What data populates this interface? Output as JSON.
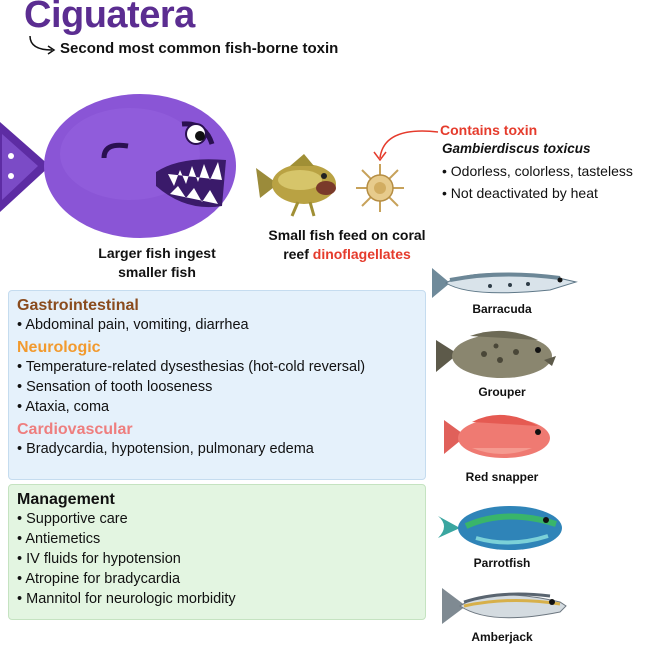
{
  "header": {
    "title": "Ciguatera",
    "subtitle": "Second most common fish-borne toxin"
  },
  "illustration": {
    "large_fish_caption_line1": "Larger fish ingest",
    "large_fish_caption_line2": "smaller fish",
    "small_fish_caption_line1": "Small fish feed on coral",
    "small_fish_caption_line2_plain": "reef ",
    "small_fish_caption_line2_highlight": "dinoflagellates"
  },
  "toxin": {
    "label": "Contains toxin",
    "species": "Gambierdiscus toxicus",
    "facts": [
      "Odorless, colorless, tasteless",
      "Not deactivated by heat"
    ]
  },
  "clinical": {
    "sections": [
      {
        "heading": "Gastrointestinal",
        "items": [
          "Abdominal pain, vomiting, diarrhea"
        ]
      },
      {
        "heading": "Neurologic",
        "items": [
          "Temperature-related dysesthesias (hot-cold reversal)",
          "Sensation of tooth looseness",
          "Ataxia, coma"
        ]
      },
      {
        "heading": "Cardiovascular",
        "items": [
          "Bradycardia, hypotension, pulmonary edema"
        ]
      }
    ]
  },
  "management": {
    "heading": "Management",
    "items": [
      "Supportive care",
      "Antiemetics",
      "IV fluids for hypotension",
      "Atropine for bradycardia",
      "Mannitol for neurologic morbidity"
    ]
  },
  "fish_sources": [
    "Barracuda",
    "Grouper",
    "Red snapper",
    "Parrotfish",
    "Amberjack"
  ],
  "colors": {
    "title": "#5b2d91",
    "big_fish": "#8a55d6",
    "accent_red": "#e53b2c",
    "gi": "#8a4b1d",
    "neuro": "#f29a2e",
    "cardio": "#ee7e7e"
  }
}
